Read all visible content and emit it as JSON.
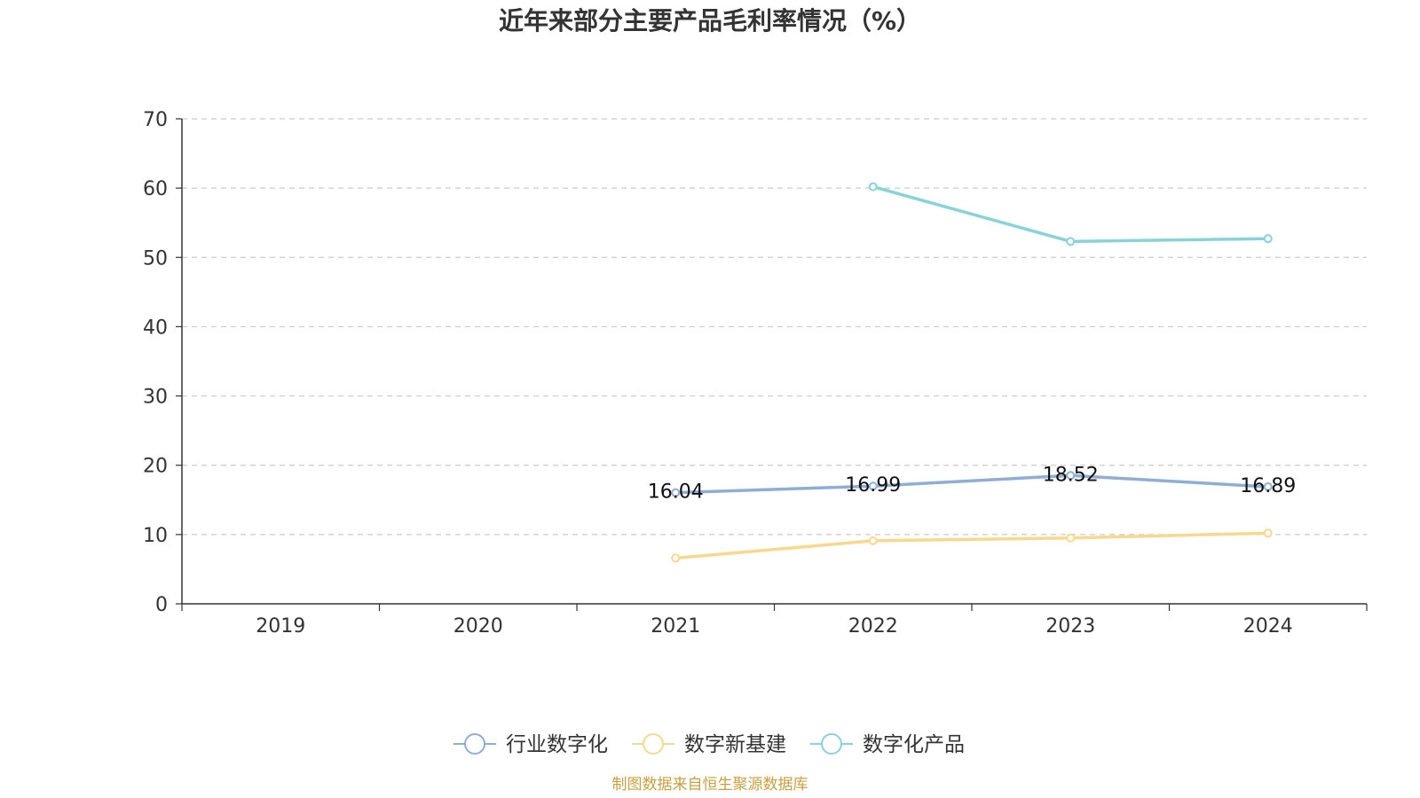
{
  "chart_data": {
    "type": "line",
    "title": "近年来部分主要产品毛利率情况（%）",
    "categories": [
      "2019",
      "2020",
      "2021",
      "2022",
      "2023",
      "2024"
    ],
    "ylim": [
      0,
      70
    ],
    "yticks": [
      "0",
      "10",
      "20",
      "30",
      "40",
      "50",
      "60",
      "70"
    ],
    "grid": true,
    "legend_position": "bottom",
    "series": [
      {
        "name": "行业数字化",
        "color": "#8eaed6",
        "values": [
          null,
          null,
          16.04,
          16.99,
          18.52,
          16.89
        ],
        "labels": [
          "",
          "",
          "16.04",
          "16.99",
          "18.52",
          "16.89"
        ]
      },
      {
        "name": "数字新基建",
        "color": "#f9d88e",
        "values": [
          null,
          null,
          6.6,
          9.1,
          9.5,
          10.2
        ],
        "labels": [
          "",
          "",
          "",
          "",
          "",
          ""
        ]
      },
      {
        "name": "数字化产品",
        "color": "#86d3d8",
        "values": [
          null,
          null,
          null,
          60.2,
          52.3,
          52.7
        ],
        "labels": [
          "",
          "",
          "",
          "",
          "",
          ""
        ]
      }
    ],
    "source": "制图数据来自恒生聚源数据库",
    "source_color": "#c8a040"
  }
}
